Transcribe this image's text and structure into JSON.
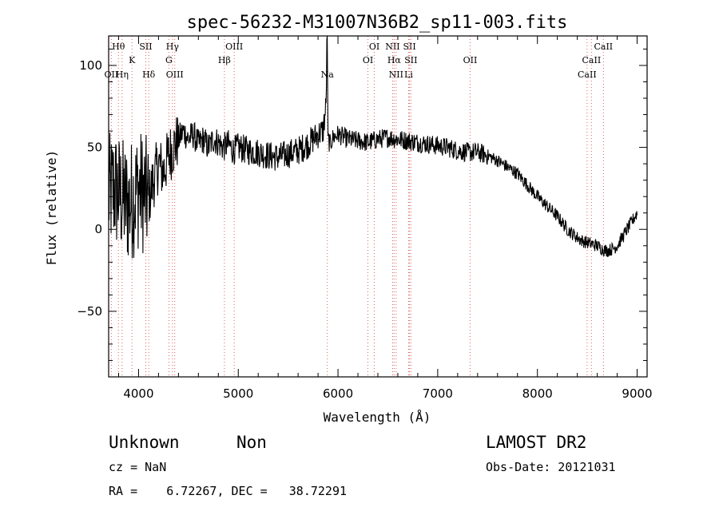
{
  "chart_data": {
    "type": "line",
    "title": "spec-56232-M31007N36B2_sp11-003.fits",
    "xlabel": "Wavelength (Å)",
    "ylabel": "Flux (relative)",
    "xlim": [
      3700,
      9100
    ],
    "ylim": [
      -90,
      118
    ],
    "x_ticks": [
      4000,
      5000,
      6000,
      7000,
      8000,
      9000
    ],
    "y_ticks": [
      -50,
      0,
      50,
      100
    ],
    "x_minor_step": 200,
    "y_minor_step": 10,
    "grid": false,
    "line_color": "#000000",
    "marker_color": "#e06060",
    "series": [
      {
        "values_x": [
          3700,
          3750,
          3800,
          3850,
          3900,
          3950,
          4000,
          4050,
          4100,
          4150,
          4200,
          4250,
          4300,
          4350,
          4400,
          4450,
          4500,
          4550,
          4600,
          4650,
          4700,
          4750,
          4800,
          4850,
          4900,
          4950,
          5000,
          5100,
          5200,
          5300,
          5400,
          5500,
          5600,
          5700,
          5750,
          5800,
          5850,
          5880,
          5890,
          5900,
          5920,
          5950,
          6000,
          6100,
          6200,
          6300,
          6400,
          6500,
          6600,
          6700,
          6800,
          6900,
          7000,
          7100,
          7200,
          7300,
          7400,
          7500,
          7600,
          7700,
          7800,
          7900,
          8000,
          8100,
          8200,
          8300,
          8400,
          8450,
          8500,
          8550,
          8600,
          8650,
          8700,
          8750,
          8800,
          8850,
          8900,
          8950,
          9000
        ],
        "values_y": [
          20,
          25,
          22,
          18,
          15,
          20,
          25,
          22,
          18,
          30,
          40,
          35,
          45,
          50,
          55,
          60,
          55,
          58,
          52,
          55,
          50,
          55,
          53,
          50,
          52,
          48,
          50,
          48,
          47,
          45,
          44,
          46,
          48,
          52,
          55,
          58,
          60,
          75,
          118,
          55,
          52,
          56,
          58,
          55,
          54,
          53,
          55,
          56,
          55,
          54,
          53,
          52,
          51,
          50,
          48,
          47,
          47,
          45,
          42,
          38,
          34,
          27,
          20,
          14,
          8,
          0,
          -5,
          -7,
          -8,
          -9,
          -10,
          -12,
          -13,
          -12,
          -10,
          -5,
          0,
          5,
          10
        ]
      }
    ],
    "lines": [
      {
        "label": "Hθ",
        "x": 3798,
        "row": 1
      },
      {
        "label": "Hη",
        "x": 3835,
        "row": 3
      },
      {
        "label": "OII",
        "x": 3727,
        "row": 3
      },
      {
        "label": "K",
        "x": 3934,
        "row": 2
      },
      {
        "label": "SII",
        "x": 4072,
        "row": 1
      },
      {
        "label": "Hδ",
        "x": 4102,
        "row": 3
      },
      {
        "label": "Hγ",
        "x": 4340,
        "row": 1
      },
      {
        "label": "G",
        "x": 4304,
        "row": 2
      },
      {
        "label": "OIII",
        "x": 4363,
        "row": 3
      },
      {
        "label": "OIII",
        "x": 4959,
        "row": 1
      },
      {
        "label": "Hβ",
        "x": 4861,
        "row": 2
      },
      {
        "label": "Na",
        "x": 5893,
        "row": 3
      },
      {
        "label": "OI",
        "x": 6364,
        "row": 1
      },
      {
        "label": "OI",
        "x": 6300,
        "row": 2
      },
      {
        "label": "NII",
        "x": 6548,
        "row": 1
      },
      {
        "label": "Hα",
        "x": 6563,
        "row": 2
      },
      {
        "label": "NII",
        "x": 6583,
        "row": 3
      },
      {
        "label": "SII",
        "x": 6717,
        "row": 1
      },
      {
        "label": "SII",
        "x": 6731,
        "row": 2
      },
      {
        "label": "Li",
        "x": 6708,
        "row": 3
      },
      {
        "label": "OII",
        "x": 7325,
        "row": 2
      },
      {
        "label": "CaII",
        "x": 8662,
        "row": 1
      },
      {
        "label": "CaII",
        "x": 8542,
        "row": 2
      },
      {
        "label": "CaII",
        "x": 8498,
        "row": 3
      }
    ]
  },
  "info": {
    "classification": "Unknown",
    "subclass": "Non",
    "survey": "LAMOST DR2",
    "cz": "cz = NaN",
    "obs_date": "Obs-Date: 20121031",
    "coords": "RA =    6.72267, DEC =   38.72291"
  }
}
